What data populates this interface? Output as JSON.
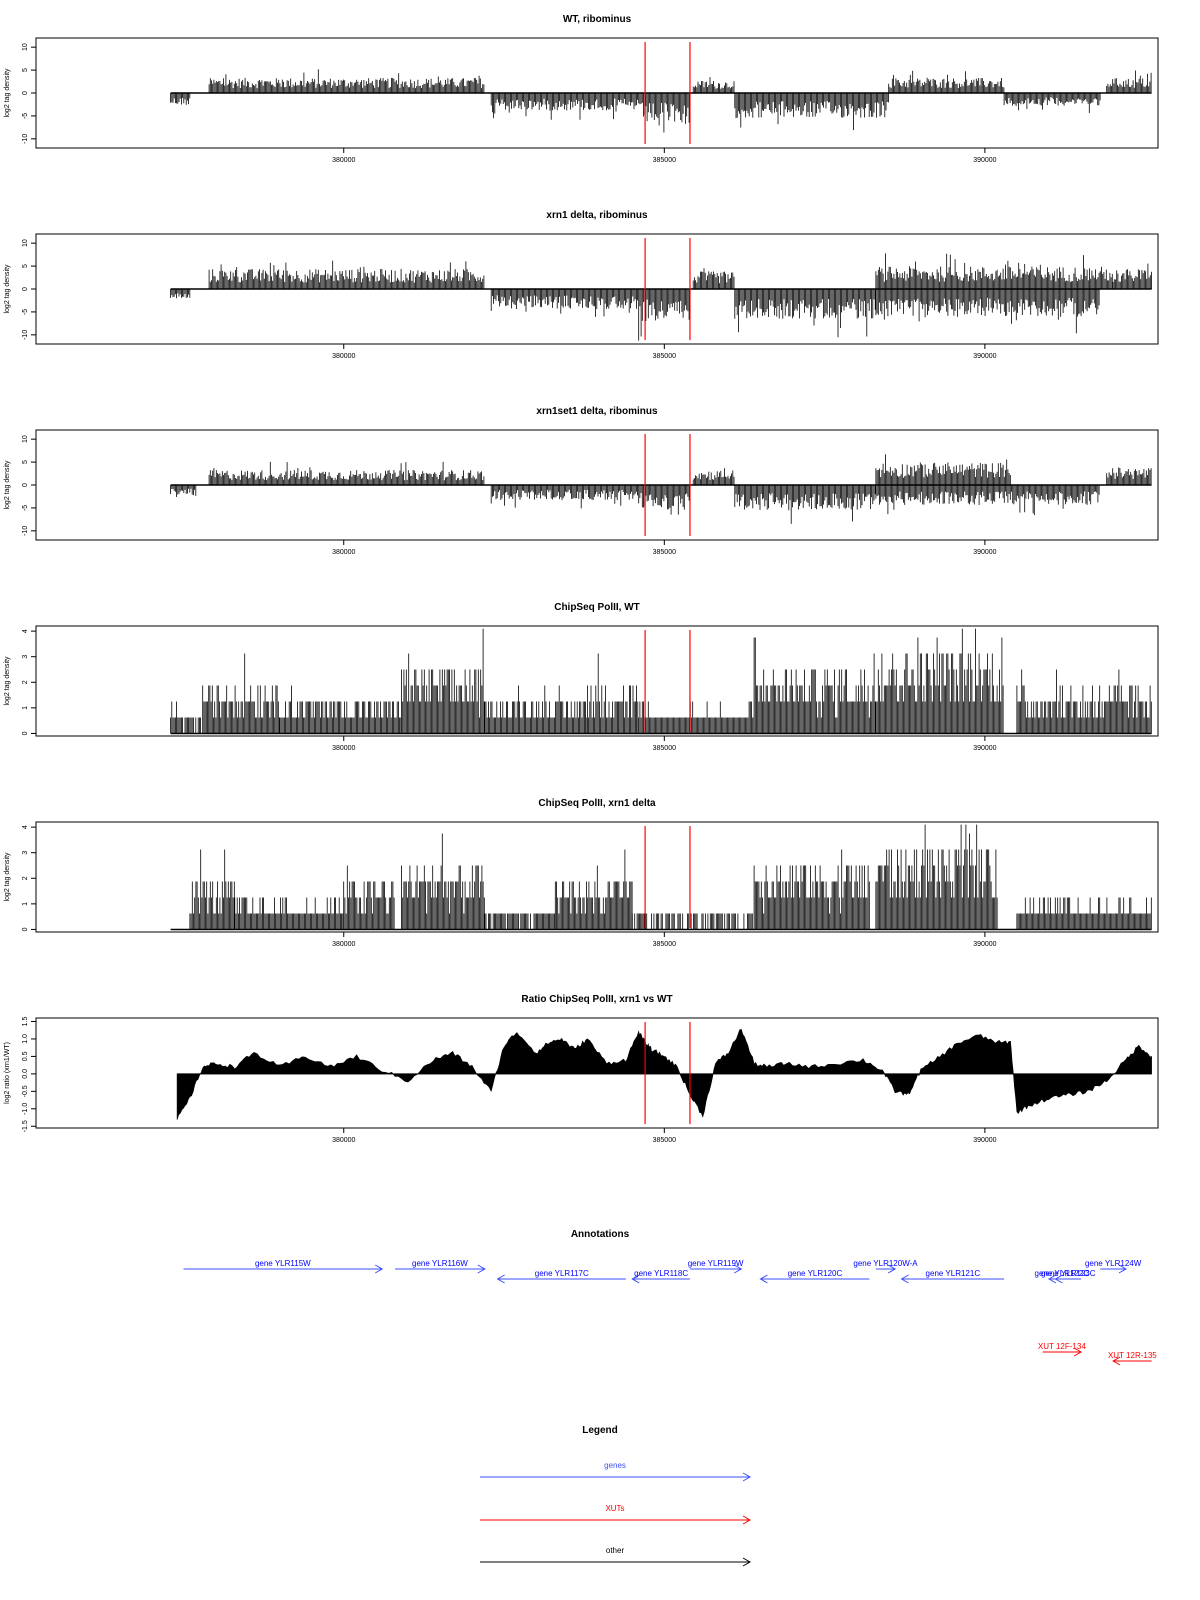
{
  "colors": {
    "axis": "#000000",
    "signal": "#000000",
    "marker": "#ff0000",
    "genes": "#0000ff",
    "xuts": "#ff0000",
    "other": "#000000",
    "annotation_blue": "#3b4fff"
  },
  "chart_data": [
    {
      "type": "bar",
      "title": "WT, ribominus",
      "xlabel": "",
      "ylabel": "log2 tag density",
      "xlim": [
        375200,
        392700
      ],
      "ylim": [
        -12,
        12
      ],
      "xticks": [
        380000,
        385000,
        390000
      ],
      "yticks": [
        -10,
        -5,
        0,
        5,
        10
      ],
      "ytick_labels": [
        "-10",
        "-5",
        "0",
        "5",
        "10"
      ],
      "grid": false,
      "markers": [
        384700,
        385400
      ],
      "regions": [
        {
          "start": 377300,
          "end": 377600,
          "level": -2.5
        },
        {
          "start": 377900,
          "end": 382200,
          "level": 3
        },
        {
          "start": 382300,
          "end": 384600,
          "level": -3.5
        },
        {
          "start": 384600,
          "end": 385400,
          "level": -6
        },
        {
          "start": 385450,
          "end": 386100,
          "level": 2.5
        },
        {
          "start": 386100,
          "end": 388500,
          "level": -5
        },
        {
          "start": 388500,
          "end": 390300,
          "level": 3
        },
        {
          "start": 390300,
          "end": 391800,
          "level": -2.5
        },
        {
          "start": 391900,
          "end": 392600,
          "level": 3
        }
      ]
    },
    {
      "type": "bar",
      "title": "xrn1 delta, ribominus",
      "xlabel": "",
      "ylabel": "log2 tag density",
      "xlim": [
        375200,
        392700
      ],
      "ylim": [
        -12,
        12
      ],
      "xticks": [
        380000,
        385000,
        390000
      ],
      "yticks": [
        -10,
        -5,
        0,
        5,
        10
      ],
      "ytick_labels": [
        "-10",
        "-5",
        "0",
        "5",
        "10"
      ],
      "grid": false,
      "markers": [
        384700,
        385400
      ],
      "regions": [
        {
          "start": 377300,
          "end": 377600,
          "level": -2
        },
        {
          "start": 377900,
          "end": 382200,
          "level": 4
        },
        {
          "start": 382300,
          "end": 384600,
          "level": -4
        },
        {
          "start": 384600,
          "end": 385400,
          "level": -6.5
        },
        {
          "start": 385450,
          "end": 386100,
          "level": 3.5
        },
        {
          "start": 386100,
          "end": 388300,
          "level": -6
        },
        {
          "start": 388300,
          "end": 392000,
          "level": 4.5
        },
        {
          "start": 388300,
          "end": 391800,
          "level": -5.5
        },
        {
          "start": 392000,
          "end": 392600,
          "level": 4
        }
      ]
    },
    {
      "type": "bar",
      "title": "xrn1set1 delta, ribominus",
      "xlabel": "",
      "ylabel": "log2 tag density",
      "xlim": [
        375200,
        392700
      ],
      "ylim": [
        -12,
        12
      ],
      "xticks": [
        380000,
        385000,
        390000
      ],
      "yticks": [
        -10,
        -5,
        0,
        5,
        10
      ],
      "ytick_labels": [
        "-10",
        "-5",
        "0",
        "5",
        "10"
      ],
      "grid": false,
      "markers": [
        384700,
        385400
      ],
      "regions": [
        {
          "start": 377300,
          "end": 377700,
          "level": -2
        },
        {
          "start": 377900,
          "end": 382200,
          "level": 3
        },
        {
          "start": 382300,
          "end": 384600,
          "level": -3
        },
        {
          "start": 384600,
          "end": 385400,
          "level": -5
        },
        {
          "start": 385450,
          "end": 386100,
          "level": 3
        },
        {
          "start": 386100,
          "end": 388300,
          "level": -5
        },
        {
          "start": 388300,
          "end": 390400,
          "level": 4.5
        },
        {
          "start": 388300,
          "end": 391800,
          "level": -4
        },
        {
          "start": 391900,
          "end": 392600,
          "level": 3.5
        }
      ]
    },
    {
      "type": "bar",
      "title": "ChipSeq PolII, WT",
      "xlabel": "",
      "ylabel": "log2 tag density",
      "xlim": [
        375200,
        392700
      ],
      "ylim": [
        -0.1,
        4.2
      ],
      "xticks": [
        380000,
        385000,
        390000
      ],
      "yticks": [
        0,
        1,
        2,
        3,
        4
      ],
      "ytick_labels": [
        "0",
        "1",
        "2",
        "3",
        "4"
      ],
      "grid": false,
      "markers": [
        384700,
        385400
      ],
      "regions": [
        {
          "start": 377300,
          "end": 377800,
          "level": 0.6
        },
        {
          "start": 377800,
          "end": 379000,
          "level": 1.8
        },
        {
          "start": 379000,
          "end": 380900,
          "level": 1.4
        },
        {
          "start": 380900,
          "end": 382200,
          "level": 2.4
        },
        {
          "start": 382200,
          "end": 383800,
          "level": 1.2
        },
        {
          "start": 383800,
          "end": 384600,
          "level": 1.8
        },
        {
          "start": 384600,
          "end": 386400,
          "level": 0.9
        },
        {
          "start": 386400,
          "end": 388300,
          "level": 2.4
        },
        {
          "start": 388300,
          "end": 390300,
          "level": 3.0
        },
        {
          "start": 390500,
          "end": 392600,
          "level": 1.6
        }
      ]
    },
    {
      "type": "bar",
      "title": "ChipSeq PolII, xrn1 delta",
      "xlabel": "",
      "ylabel": "log2 tag density",
      "xlim": [
        375200,
        392700
      ],
      "ylim": [
        -0.1,
        4.2
      ],
      "xticks": [
        380000,
        385000,
        390000
      ],
      "yticks": [
        0,
        1,
        2,
        3,
        4
      ],
      "ytick_labels": [
        "0",
        "1",
        "2",
        "3",
        "4"
      ],
      "grid": false,
      "markers": [
        384700,
        385400
      ],
      "regions": [
        {
          "start": 377600,
          "end": 378300,
          "level": 1.8
        },
        {
          "start": 378300,
          "end": 380000,
          "level": 1.0
        },
        {
          "start": 380000,
          "end": 380800,
          "level": 1.8
        },
        {
          "start": 380900,
          "end": 382200,
          "level": 2.4
        },
        {
          "start": 382200,
          "end": 383300,
          "level": 0.8
        },
        {
          "start": 383300,
          "end": 384500,
          "level": 1.8
        },
        {
          "start": 384500,
          "end": 386400,
          "level": 0.5
        },
        {
          "start": 386400,
          "end": 388200,
          "level": 2.5
        },
        {
          "start": 388300,
          "end": 390200,
          "level": 3.1
        },
        {
          "start": 390500,
          "end": 392600,
          "level": 1.0
        }
      ]
    },
    {
      "type": "area",
      "title": "Ratio ChipSeq PolII, xrn1 vs WT",
      "xlabel": "",
      "ylabel": "log2 ratio (xrn1/WT)",
      "xlim": [
        375200,
        392700
      ],
      "ylim": [
        -1.55,
        1.6
      ],
      "xticks": [
        380000,
        385000,
        390000
      ],
      "yticks": [
        -1.5,
        -1.0,
        -0.5,
        0.0,
        0.5,
        1.0,
        1.5
      ],
      "ytick_labels": [
        "-1.5",
        "-1.0",
        "-0.5",
        "0.0",
        "0.5",
        "1.0",
        "1.5"
      ],
      "grid": false,
      "markers": [
        384700,
        385400
      ],
      "x": [
        377400,
        377600,
        377800,
        378000,
        378300,
        378600,
        379000,
        379400,
        379800,
        380200,
        380600,
        381000,
        381400,
        381700,
        382000,
        382300,
        382500,
        382700,
        383000,
        383200,
        383400,
        383600,
        383800,
        384100,
        384400,
        384600,
        384700,
        384800,
        385000,
        385200,
        385400,
        385600,
        385800,
        386000,
        386200,
        386400,
        386600,
        386900,
        387300,
        387700,
        388100,
        388400,
        388600,
        388800,
        389000,
        389300,
        389600,
        389900,
        390200,
        390400,
        390500,
        390700,
        391000,
        391300,
        391600,
        391900,
        392200,
        392400,
        392600
      ],
      "values": [
        -1.3,
        -0.7,
        0.2,
        0.3,
        0.2,
        0.6,
        0.2,
        0.5,
        0.2,
        0.5,
        0.1,
        -0.2,
        0.4,
        0.6,
        0.2,
        -0.5,
        0.8,
        1.2,
        0.6,
        0.9,
        1.0,
        0.7,
        1.0,
        0.3,
        0.4,
        1.2,
        0.9,
        0.7,
        0.5,
        0.2,
        -0.6,
        -1.2,
        0.3,
        0.6,
        1.3,
        0.3,
        0.2,
        0.3,
        0.2,
        0.3,
        0.4,
        0.1,
        -0.5,
        -0.6,
        0.1,
        0.5,
        0.9,
        1.1,
        0.9,
        0.9,
        -1.1,
        -0.9,
        -0.7,
        -0.6,
        -0.5,
        -0.2,
        0.4,
        0.8,
        0.5
      ]
    }
  ],
  "annotations": {
    "title": "Annotations",
    "genes": [
      {
        "label": "gene YLR115W",
        "start": 377500,
        "end": 380600,
        "strand": "+",
        "row": 1
      },
      {
        "label": "gene YLR116W",
        "start": 380800,
        "end": 382200,
        "strand": "+",
        "row": 1
      },
      {
        "label": "gene YLR117C",
        "start": 382400,
        "end": 384400,
        "strand": "-",
        "row": 2
      },
      {
        "label": "gene YLR118C",
        "start": 384500,
        "end": 385400,
        "strand": "-",
        "row": 2
      },
      {
        "label": "gene YLR119W",
        "start": 385400,
        "end": 386200,
        "strand": "+",
        "row": 1
      },
      {
        "label": "gene YLR120C",
        "start": 386500,
        "end": 388200,
        "strand": "-",
        "row": 2
      },
      {
        "label": "gene YLR120W-A",
        "start": 388300,
        "end": 388600,
        "strand": "+",
        "row": 1
      },
      {
        "label": "gene YLR121C",
        "start": 388700,
        "end": 390300,
        "strand": "-",
        "row": 2
      },
      {
        "label": "gene YLR122C",
        "start": 391000,
        "end": 391400,
        "strand": "-",
        "row": 2
      },
      {
        "label": "gene YLR123C",
        "start": 391100,
        "end": 391500,
        "strand": "-",
        "row": 2
      },
      {
        "label": "gene YLR124W",
        "start": 391800,
        "end": 392200,
        "strand": "+",
        "row": 1
      }
    ],
    "xuts": [
      {
        "label": "XUT 12F-134",
        "start": 390900,
        "end": 391500,
        "strand": "+",
        "row": 3
      },
      {
        "label": "XUT 12R-135",
        "start": 392000,
        "end": 392600,
        "strand": "-",
        "row": 4
      }
    ]
  },
  "legend": {
    "title": "Legend",
    "items": [
      {
        "label": "genes",
        "color": "#3b4fff"
      },
      {
        "label": "XUTs",
        "color": "#ff0000"
      },
      {
        "label": "other",
        "color": "#000000"
      }
    ]
  }
}
